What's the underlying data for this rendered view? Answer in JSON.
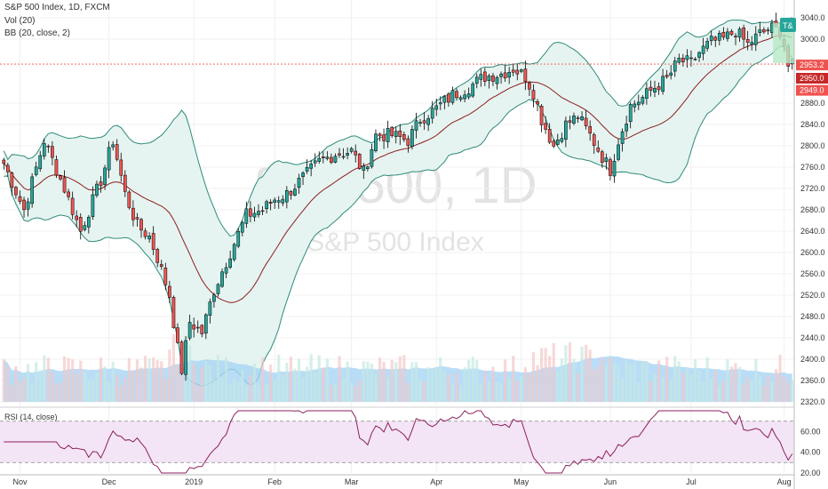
{
  "chart_data": {
    "type": "candlestick",
    "title": "S&P 500 Index, 1D, FXCM",
    "symbol_watermark": "SPX500, 1D",
    "name_watermark": "S&P 500 Index",
    "indicators": {
      "vol": "Vol (20)",
      "bb": "BB (20, close, 2)",
      "rsi": "RSI (14, close)"
    },
    "y_ticks": [
      "3040.0",
      "3000.0",
      "2880.0",
      "2840.0",
      "2800.0",
      "2760.0",
      "2720.0",
      "2680.0",
      "2640.0",
      "2600.0",
      "2560.0",
      "2520.0",
      "2480.0",
      "2440.0",
      "2400.0",
      "2360.0",
      "2320.0"
    ],
    "ylim": [
      2320,
      3040
    ],
    "rsi_ticks": [
      "60.00",
      "40.00",
      "20.00"
    ],
    "rsi_lim": [
      20,
      80
    ],
    "x_ticks": [
      {
        "label": "Nov",
        "idx": 4
      },
      {
        "label": "Dec",
        "idx": 26
      },
      {
        "label": "2019",
        "idx": 47
      },
      {
        "label": "Feb",
        "idx": 67
      },
      {
        "label": "Mar",
        "idx": 86
      },
      {
        "label": "Apr",
        "idx": 107
      },
      {
        "label": "May",
        "idx": 128
      },
      {
        "label": "Jun",
        "idx": 150
      },
      {
        "label": "Jul",
        "idx": 170
      },
      {
        "label": "Aug",
        "idx": 193
      }
    ],
    "price_tags": [
      {
        "label": "2953.2",
        "value": 2953.2,
        "color": "#ef5350"
      },
      {
        "label": "2950.0",
        "value": 2950.0,
        "color": "#c62828"
      },
      {
        "label": "2949.0",
        "value": 2949.0,
        "color": "#ef5350"
      }
    ],
    "top_tag": {
      "label": "T&",
      "color": "#26a69a"
    },
    "colors": {
      "up": "#26a69a",
      "down": "#ef5350",
      "bb_band": "#2e8b7a",
      "bb_fill": "#e6f4f1",
      "bb_mid": "#8b1e1e",
      "vol_ma": "#a8d5f5",
      "rsi_line": "#8e1f5e",
      "rsi_bg": "#f3e5f5",
      "vol_up": "#c5e8e3",
      "vol_down": "#f3c7c7"
    },
    "anchors": [
      {
        "i": 0,
        "c": 2767
      },
      {
        "i": 5,
        "c": 2680
      },
      {
        "i": 10,
        "c": 2810
      },
      {
        "i": 15,
        "c": 2720
      },
      {
        "i": 19,
        "c": 2640
      },
      {
        "i": 24,
        "c": 2735
      },
      {
        "i": 27,
        "c": 2810
      },
      {
        "i": 30,
        "c": 2710
      },
      {
        "i": 33,
        "c": 2650
      },
      {
        "i": 36,
        "c": 2630
      },
      {
        "i": 38,
        "c": 2590
      },
      {
        "i": 41,
        "c": 2520
      },
      {
        "i": 43,
        "c": 2420
      },
      {
        "i": 44,
        "c": 2380
      },
      {
        "i": 46,
        "c": 2470
      },
      {
        "i": 49,
        "c": 2450
      },
      {
        "i": 52,
        "c": 2530
      },
      {
        "i": 56,
        "c": 2600
      },
      {
        "i": 60,
        "c": 2670
      },
      {
        "i": 64,
        "c": 2680
      },
      {
        "i": 67,
        "c": 2700
      },
      {
        "i": 70,
        "c": 2710
      },
      {
        "i": 74,
        "c": 2740
      },
      {
        "i": 78,
        "c": 2770
      },
      {
        "i": 82,
        "c": 2785
      },
      {
        "i": 86,
        "c": 2790
      },
      {
        "i": 89,
        "c": 2750
      },
      {
        "i": 92,
        "c": 2820
      },
      {
        "i": 96,
        "c": 2820
      },
      {
        "i": 100,
        "c": 2810
      },
      {
        "i": 103,
        "c": 2850
      },
      {
        "i": 107,
        "c": 2870
      },
      {
        "i": 111,
        "c": 2895
      },
      {
        "i": 115,
        "c": 2910
      },
      {
        "i": 119,
        "c": 2930
      },
      {
        "i": 123,
        "c": 2935
      },
      {
        "i": 126,
        "c": 2945
      },
      {
        "i": 129,
        "c": 2930
      },
      {
        "i": 131,
        "c": 2900
      },
      {
        "i": 133,
        "c": 2850
      },
      {
        "i": 136,
        "c": 2800
      },
      {
        "i": 139,
        "c": 2840
      },
      {
        "i": 142,
        "c": 2855
      },
      {
        "i": 145,
        "c": 2820
      },
      {
        "i": 148,
        "c": 2780
      },
      {
        "i": 150,
        "c": 2755
      },
      {
        "i": 152,
        "c": 2810
      },
      {
        "i": 155,
        "c": 2875
      },
      {
        "i": 158,
        "c": 2890
      },
      {
        "i": 161,
        "c": 2910
      },
      {
        "i": 164,
        "c": 2925
      },
      {
        "i": 167,
        "c": 2960
      },
      {
        "i": 170,
        "c": 2955
      },
      {
        "i": 172,
        "c": 2975
      },
      {
        "i": 175,
        "c": 2995
      },
      {
        "i": 178,
        "c": 3000
      },
      {
        "i": 181,
        "c": 3015
      },
      {
        "i": 184,
        "c": 2990
      },
      {
        "i": 187,
        "c": 3010
      },
      {
        "i": 190,
        "c": 3020
      },
      {
        "i": 192,
        "c": 3015
      },
      {
        "i": 193,
        "c": 2990
      },
      {
        "i": 194,
        "c": 2950
      }
    ]
  }
}
